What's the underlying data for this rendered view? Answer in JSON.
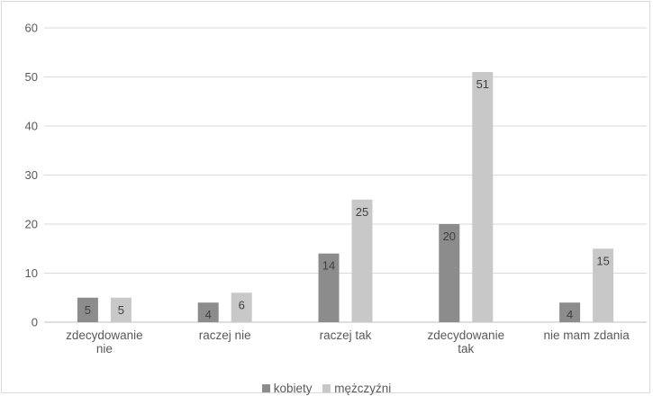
{
  "chart_data": {
    "type": "bar",
    "categories": [
      [
        "zdecydowanie",
        "nie"
      ],
      [
        "raczej nie"
      ],
      [
        "raczej tak"
      ],
      [
        "zdecydowanie",
        "tak"
      ],
      [
        "nie mam zdania"
      ]
    ],
    "series": [
      {
        "name": "kobiety",
        "color": "#8c8c8c",
        "values": [
          5,
          4,
          14,
          20,
          4
        ]
      },
      {
        "name": "mężczyźni",
        "color": "#c8c8c8",
        "values": [
          5,
          6,
          25,
          51,
          15
        ]
      }
    ],
    "ylim": [
      0,
      60
    ],
    "yticks": [
      0,
      10,
      20,
      30,
      40,
      50,
      60
    ],
    "grid": true,
    "legend_position": "bottom",
    "gridline_color": "#d9d9d9",
    "axis_color": "#bfbfbf"
  }
}
